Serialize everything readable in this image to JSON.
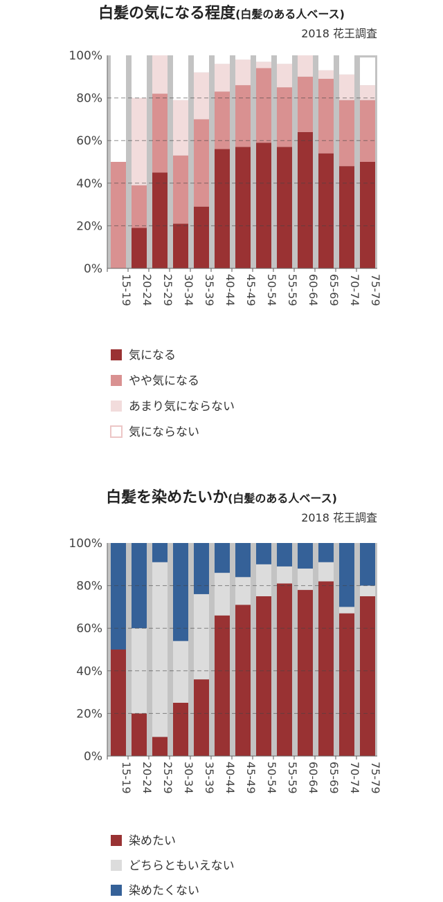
{
  "chart_data": [
    {
      "type": "bar",
      "stacked": true,
      "title": "白髪の気になる程度",
      "title_note": "(白髪のある人ベース)",
      "subtitle": "2018 花王調査",
      "categories": [
        "15-19",
        "20-24",
        "25-29",
        "30-34",
        "35-39",
        "40-44",
        "45-49",
        "50-54",
        "55-59",
        "60-64",
        "65-69",
        "70-74",
        "75-79"
      ],
      "ylim": [
        0,
        100
      ],
      "yticks": [
        "0%",
        "20%",
        "40%",
        "60%",
        "80%",
        "100%"
      ],
      "grid": true,
      "legend_position": "bottom",
      "series": [
        {
          "name": "気になる",
          "color": "#9a3233",
          "values": [
            0,
            19,
            45,
            21,
            29,
            56,
            57,
            59,
            57,
            64,
            54,
            48,
            50
          ]
        },
        {
          "name": "やや気になる",
          "color": "#d99191",
          "values": [
            50,
            20,
            37,
            32,
            41,
            27,
            29,
            35,
            28,
            26,
            35,
            31,
            29
          ]
        },
        {
          "name": "あまり気にならない",
          "color": "#f2dcdc",
          "values": [
            0,
            41,
            18,
            26,
            22,
            13,
            12,
            3,
            11,
            10,
            4,
            12,
            7
          ]
        },
        {
          "name": "気にならない",
          "color": "#ffffff",
          "values": [
            50,
            20,
            0,
            21,
            8,
            4,
            3,
            3,
            4,
            0,
            7,
            9,
            13
          ]
        }
      ]
    },
    {
      "type": "bar",
      "stacked": true,
      "title": "白髪を染めたいか",
      "title_note": "(白髪のある人ベース)",
      "subtitle": "2018 花王調査",
      "categories": [
        "15-19",
        "20-24",
        "25-29",
        "30-34",
        "35-39",
        "40-44",
        "45-49",
        "50-54",
        "55-59",
        "60-64",
        "65-69",
        "70-74",
        "75-79"
      ],
      "ylim": [
        0,
        100
      ],
      "yticks": [
        "0%",
        "20%",
        "40%",
        "60%",
        "80%",
        "100%"
      ],
      "grid": true,
      "legend_position": "bottom",
      "series": [
        {
          "name": "染めたい",
          "color": "#993233",
          "values": [
            50,
            20,
            9,
            25,
            36,
            66,
            71,
            75,
            81,
            78,
            82,
            67,
            75
          ]
        },
        {
          "name": "どちらともいえない",
          "color": "#dcdcdc",
          "values": [
            0,
            40,
            82,
            29,
            40,
            20,
            13,
            15,
            8,
            10,
            9,
            3,
            5
          ]
        },
        {
          "name": "染めたくない",
          "color": "#356198",
          "values": [
            50,
            40,
            9,
            46,
            24,
            14,
            16,
            10,
            11,
            12,
            9,
            30,
            20
          ]
        }
      ]
    }
  ]
}
